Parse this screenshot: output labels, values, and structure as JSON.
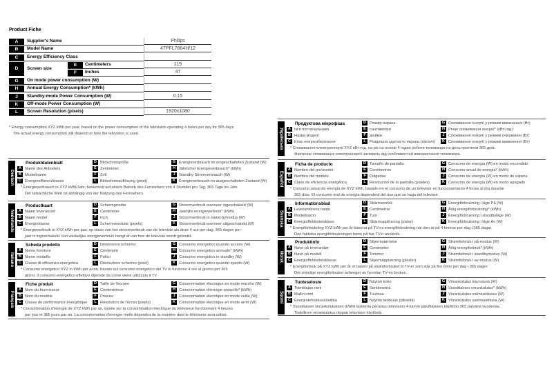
{
  "fiche": {
    "title": "Product Fiche",
    "rows": [
      {
        "letter": "A",
        "label": "Supplier's Name",
        "value": "Philips"
      },
      {
        "letter": "B",
        "label": "Model Name",
        "value": "47PFL7864H/12"
      },
      {
        "letter": "C",
        "label": "Energy Efficiency Class",
        "value": ""
      },
      {
        "letter": "D",
        "label": "Screen size",
        "sub": [
          {
            "letter": "E",
            "label": "Centimeters",
            "value": "119"
          },
          {
            "letter": "F",
            "label": "Inches",
            "value": "47"
          }
        ]
      },
      {
        "letter": "G",
        "label": "On mode power consumption (W)",
        "value": ""
      },
      {
        "letter": "H",
        "label": "Annual Energy Consumption* (kWh)",
        "value": ""
      },
      {
        "letter": "J",
        "label": "Standby-mode Power Consumption (W)",
        "value": "0.15"
      },
      {
        "letter": "K",
        "label": "Off-mode Power Consumption (W)",
        "value": ""
      },
      {
        "letter": "L",
        "label": "Screen Resolution (pixels)",
        "value": "1920x1080"
      }
    ],
    "note": [
      "* Energy consumption XYZ kWh per year, based on the power consumption of the television operating 4 hours per day for 365 days.",
      "The actual energy consumption will depend on how the television is used."
    ]
  },
  "languages": [
    {
      "name": "Deutsch",
      "title": "Produktdatenblatt",
      "A": "Name des Anbieters",
      "B": "Modellname",
      "C": "Energieeffizienzklasse",
      "D": "Bildschirmgröße",
      "E": "Zentimeter",
      "F": "Zoll",
      "L": "Bildschirmauflösung (pixel)",
      "G": "Energieverbrauch im eingeschalteten Zustand (W)",
      "H": "Jährlicher Energieverbrauch* (kWh)",
      "J": "Standby-Stromverbrauch (W)",
      "K": "Energieverbrauch im ausgeschalteten Zustand (W)",
      "note": [
        "* Energieverbrauch in XYZ kWh/Jahr, basierend auf einem Betrieb des Fernsehers von 4 Stunden pro Tag, 365 Tage im Jahr.",
        "Der tatsächliche Wert ist abhängig von der Nutzung des Fernsehers."
      ]
    },
    {
      "name": "Nederlands",
      "title": "Productkaart",
      "A": "Naam leverancier",
      "B": "Naam model",
      "C": "Energieklasse",
      "D": "Schermgrootte",
      "E": "Centimeter",
      "F": "Inch",
      "L": "Schermresolutie (pixels)",
      "G": "Stroomverbruik wanneer ingeschakeld (W)",
      "H": "Jaarlijks energieverbruik* (kWh)",
      "J": "Stroomverbruik in stand-bymodus (W)",
      "K": "Stroomverbruik wanneer uitgeschakeld (W)",
      "note": [
        "* Energieverbruik in XYZ kWh per jaar, op basis van het stroomverbruik van de televisie als deze 4 uur per dag, 365 dagen per",
        "jaar is ingeschakeld. Het werkelijke energieverbruik hangt af van hoe de televisie wordt gebruikt."
      ]
    },
    {
      "name": "Italiano",
      "title": "Scheda prodotto",
      "A": "Nome fornitore",
      "B": "Nome modello",
      "C": "Classe di efficienza energetica",
      "D": "Dimensioni schermo",
      "E": "Centimetri",
      "F": "Pollici",
      "L": "Risoluzione schermo (pixel)",
      "G": "Consumo energetico quando acceso (W)",
      "H": "Consumo energetico annuale* (kWh)",
      "J": "Consumo energetico in standby (W)",
      "K": "Consumo energetico quando spento (W)",
      "note": [
        "* Consumo energetico XYZ in kWh per anno, basato sul consumo energetico del TV in funzione 4 ore al giorno per 365",
        "giorni. Il consumo energetico effettivo dipende da come viene utilizzato il TV."
      ]
    },
    {
      "name": "Français",
      "title": "Fiche produit",
      "A": "Nom du fournisseur",
      "B": "Nom du modèle",
      "C": "Classe de performance énergétique",
      "D": "Taille de l'écrane",
      "E": "Centimètrese",
      "F": "Pouces",
      "L": "Résolution de l'écran (pixels)",
      "G": "Consommation électrique en mode marche (W)",
      "H": "Consommation d'énergie annuelle* (kWh)",
      "J": "Consommation électrique en mode veille (W)",
      "K": "Consommation électrique en mode arrêt (W)",
      "note": [
        "* Consommation d'énergie de XYZ kWh par an, basée sur la consommation électrique du téléviseur fonctionnant 4 heures",
        "par jour et 365 jours par an. La consommation d'énergie réelle dépendra de la manière dont le téléviseur sera utilisé."
      ]
    },
    {
      "name": "Українська",
      "title": "Продуктова мікрофіша",
      "A": "Ім'я постачальника",
      "B": "Назва моделі",
      "C": "Клас енергозберігання",
      "D": "Розмір екрана",
      "E": "сантиметри",
      "F": "дюйми",
      "L": "Роздільна здатність екрана (пікселі)",
      "G": "Споживання енергії у режимі ввімкнення (Вт)",
      "H": "Річне споживання енергії* (кВт-год.)",
      "J": "Споживання енергії у режимі очікування (Вт)",
      "K": "Споживання енергії у режимі вимкнення (Вт)",
      "note": [
        "* Споживання електроенергії XYZ кВт-год. на рік на основі 4 годин роботи телевізора на день протягом 365 днів.",
        "Фактичне споживання електроенергії залежить від особливостей використання телевізора."
      ]
    },
    {
      "name": "Español",
      "title": "Ficha de producto",
      "A": "Nombre del proveedor",
      "B": "Nombre del modelo",
      "C": "Clase de eficiencia energética",
      "D": "Tamaño de pantalla",
      "E": "Centímetros",
      "F": "Pulgadas",
      "L": "Resolución de la pantalla (píxeles)",
      "G": "Consumo de energía (W) en modo encendido",
      "H": "Consumo anual de energía* (kWh)",
      "J": "Consumo de energía (W) en modo de espera",
      "K": "Consumo de energía (W) en modo apagado",
      "note": [
        "* Consumo anual de energía de XYZ kWh, basado en el consumo de un televisor en funcionamiento 4 horas al día durante",
        "365 días. El consumo real de energía dependerá del uso que se haga del televisor."
      ]
    },
    {
      "name": "Svenska",
      "title": "Informationsblad",
      "A": "Leverantörens namn",
      "B": "Modellnamn",
      "C": "Energieffektivitetsklass",
      "D": "Skärmstorlek",
      "E": "Centimetrar",
      "F": "Tum",
      "L": "Skärmupplösning (pixlar)",
      "G": "Energiförbrukning i läge På (W)",
      "H": "Årlig energiförbrukning* (kWh)",
      "J": "Energiförbrukning i standbyläge (W)",
      "K": "Energiförbrukning i läge Av (W)",
      "note": [
        "* Energiförbrukning XYZ kWh per år baserat på TV:ns energiförbrukning när den är på 4 timmar per dag i 365 dagar.",
        "Den faktiska energiförbrukningen beror på hur TV:n används."
      ]
    },
    {
      "name": "Norsk",
      "title": "Produktinfo",
      "A": "Navn på leverandør",
      "B": "Navn på modell",
      "C": "Energieffektivitetsklasse",
      "D": "Skjermstørrelse",
      "E": "Centimeter",
      "F": "Tommer",
      "L": "Skjermoppløsning (piksler)",
      "G": "Strømforbruk i på-modus (W)",
      "H": "Årlig energiforbruk* (kWh)",
      "J": "Strømforbruk i standbymodus (W)",
      "K": "Strømforbruk i av-modus (W)",
      "note": [
        "* Energiforbruk på XYZ kWh per år er basert på strømforbruket til TV-er som står på fire timer per dag i 365 dager.",
        "Det virkelige energiforbruket avhenger av hvordan TV-en brukes."
      ]
    },
    {
      "name": "Suomi",
      "title": "Tuoteseloste",
      "A": "Toimittajan nimi",
      "B": "Mallin nimi",
      "C": "Energiatehokkuusluokka",
      "D": "Näytön koko",
      "E": "Senttimetriä",
      "F": "Tuumaa",
      "L": "Näytön tarkkuus (pikseliä)",
      "G": "Virrankulutus käynnissä (W)",
      "H": "Vuosittainen virrankulutus* (kWh)",
      "J": "Virrankulutus valmiustilassa (W)",
      "K": "Virrankulutus sammutettuna (W)",
      "note": [
        "* Vuosittaisen virrankulutuksen (kWh) laskenta perustuu television 4 tunnin päivittäiseen käyttöön 365 päivänä vuodessa.",
        "Todellinen virrankulutus riippuu television käytöstä."
      ]
    }
  ]
}
